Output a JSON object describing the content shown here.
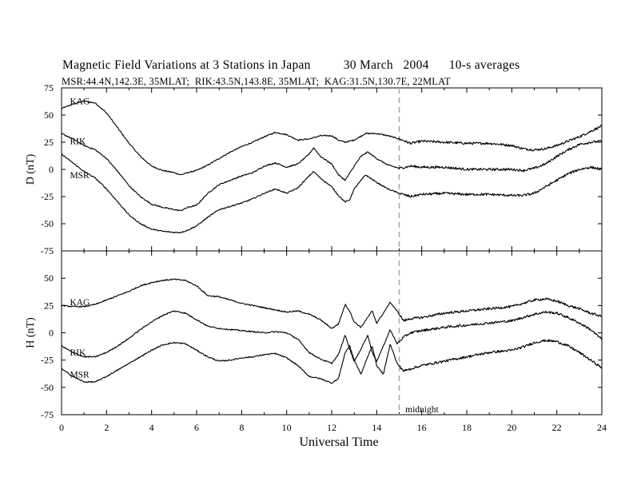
{
  "header": {
    "title": "Magnetic Field Variations at 3 Stations in Japan",
    "date": "30 March   2004",
    "averaging": "10-s averages",
    "stations_line": "MSR:44.4N,142.3E, 35MLAT;  RIK:43.5N,143.8E, 35MLAT;  KAG:31.5N,130.7E, 22MLAT"
  },
  "chart_data": [
    {
      "type": "line",
      "panel": "top",
      "ylabel": "D (nT)",
      "xlabel": "",
      "xlim": [
        0,
        24
      ],
      "ylim": [
        -75,
        75
      ],
      "yticks": [
        75,
        50,
        25,
        0,
        -25,
        -50,
        -75
      ],
      "grid": false,
      "marker_line": {
        "x": 15,
        "style": "dashed",
        "color": "#aaaaaa"
      },
      "series": [
        {
          "name": "KAG",
          "x": [
            0,
            0.5,
            1,
            1.5,
            2,
            2.5,
            3,
            3.5,
            4,
            4.5,
            5,
            5.3,
            5.6,
            6,
            6.5,
            7,
            7.5,
            8,
            8.5,
            9,
            9.5,
            10,
            10.5,
            11,
            11.5,
            12,
            12.3,
            12.6,
            13,
            13.5,
            14,
            14.5,
            15,
            15.5,
            16,
            17,
            18,
            19,
            20,
            20.5,
            21,
            21.5,
            22,
            22.5,
            23,
            23.5,
            24
          ],
          "values": [
            56,
            60,
            63,
            61,
            52,
            38,
            24,
            12,
            3,
            -1,
            -3,
            -5,
            -3,
            -1,
            4,
            10,
            16,
            21,
            25,
            30,
            34,
            32,
            27,
            28,
            31,
            31,
            27,
            25,
            27,
            33,
            33,
            31,
            28,
            24,
            26,
            25,
            24,
            24,
            22,
            19,
            18,
            19,
            22,
            26,
            30,
            35,
            40
          ]
        },
        {
          "name": "RIK",
          "x": [
            0,
            0.5,
            1,
            1.5,
            2,
            2.5,
            3,
            3.5,
            4,
            4.5,
            5,
            5.3,
            5.6,
            6,
            6.5,
            7,
            7.5,
            8,
            8.5,
            9,
            9.5,
            10,
            10.5,
            11,
            11.2,
            11.5,
            12,
            12.3,
            12.6,
            13,
            13.3,
            13.6,
            14,
            14.5,
            15,
            15.5,
            16,
            17,
            18,
            19,
            20,
            20.5,
            21,
            21.5,
            22,
            22.5,
            23,
            23.5,
            24
          ],
          "values": [
            33,
            28,
            22,
            18,
            10,
            -2,
            -15,
            -25,
            -32,
            -35,
            -37,
            -38,
            -35,
            -33,
            -22,
            -14,
            -10,
            -6,
            -3,
            3,
            6,
            2,
            5,
            14,
            20,
            12,
            5,
            -5,
            -10,
            3,
            12,
            16,
            10,
            4,
            1,
            3,
            2,
            2,
            0,
            0,
            0,
            -1,
            1,
            5,
            12,
            18,
            23,
            25,
            26
          ]
        },
        {
          "name": "MSR",
          "x": [
            0,
            0.5,
            1,
            1.5,
            2,
            2.5,
            3,
            3.5,
            4,
            4.5,
            5,
            5.3,
            5.6,
            6,
            6.5,
            7,
            7.5,
            8,
            8.5,
            9,
            9.5,
            10,
            10.5,
            11,
            11.2,
            11.5,
            12,
            12.3,
            12.6,
            12.8,
            13,
            13.5,
            14,
            14.5,
            15,
            15.5,
            16,
            17,
            18,
            19,
            20,
            20.5,
            21,
            21.5,
            22,
            22.5,
            23,
            23.5,
            24
          ],
          "values": [
            14,
            6,
            -2,
            -8,
            -18,
            -30,
            -42,
            -50,
            -55,
            -57,
            -58,
            -58,
            -56,
            -52,
            -44,
            -37,
            -34,
            -31,
            -27,
            -22,
            -18,
            -22,
            -17,
            -6,
            -2,
            -8,
            -16,
            -24,
            -30,
            -28,
            -18,
            -5,
            -12,
            -18,
            -22,
            -25,
            -23,
            -22,
            -23,
            -23,
            -24,
            -24,
            -22,
            -16,
            -10,
            -4,
            0,
            2,
            0
          ]
        }
      ],
      "annotations": [
        {
          "text": "KAG",
          "x": 0.3,
          "y": 63
        },
        {
          "text": "RIK",
          "x": 0.3,
          "y": 26
        },
        {
          "text": "MSR",
          "x": 0.3,
          "y": -5
        }
      ]
    },
    {
      "type": "line",
      "panel": "bottom",
      "ylabel": "H (nT)",
      "xlabel": "Universal Time",
      "xlim": [
        0,
        24
      ],
      "ylim": [
        -75,
        75
      ],
      "xticks": [
        0,
        2,
        4,
        6,
        8,
        10,
        12,
        14,
        16,
        18,
        20,
        22,
        24
      ],
      "yticks": [
        50,
        25,
        0,
        -25,
        -50,
        -75
      ],
      "grid": false,
      "marker_line": {
        "x": 15,
        "style": "dashed",
        "color": "#aaaaaa",
        "label": "midnight"
      },
      "series": [
        {
          "name": "KAG",
          "x": [
            0,
            0.5,
            1,
            1.5,
            2,
            2.5,
            3,
            3.5,
            4,
            4.5,
            5,
            5.5,
            6,
            6.5,
            7,
            7.5,
            8,
            8.5,
            9,
            9.5,
            10,
            10.5,
            11,
            11.5,
            12,
            12.3,
            12.6,
            12.8,
            13,
            13.3,
            13.6,
            13.8,
            14,
            14.3,
            14.6,
            14.9,
            15.2,
            15.5,
            16,
            17,
            18,
            19,
            20,
            20.5,
            21,
            21.5,
            22,
            22.5,
            23,
            23.5,
            24
          ],
          "values": [
            25,
            24,
            24,
            26,
            30,
            34,
            38,
            43,
            46,
            48,
            49,
            48,
            43,
            34,
            33,
            30,
            27,
            25,
            23,
            21,
            19,
            20,
            17,
            12,
            4,
            8,
            26,
            20,
            10,
            5,
            14,
            20,
            9,
            18,
            28,
            20,
            11,
            13,
            14,
            18,
            20,
            22,
            24,
            27,
            30,
            31,
            29,
            25,
            22,
            18,
            15
          ]
        },
        {
          "name": "RIK",
          "x": [
            0,
            0.5,
            1,
            1.5,
            2,
            2.5,
            3,
            3.5,
            4,
            4.5,
            5,
            5.5,
            6,
            6.5,
            7,
            7.5,
            8,
            8.5,
            9,
            9.5,
            10,
            10.5,
            11,
            11.5,
            12,
            12.3,
            12.6,
            12.8,
            13,
            13.3,
            13.6,
            13.8,
            14,
            14.3,
            14.6,
            14.9,
            15.2,
            15.5,
            16,
            17,
            18,
            19,
            20,
            20.5,
            21,
            21.5,
            22,
            22.5,
            23,
            23.5,
            24
          ],
          "values": [
            -12,
            -18,
            -22,
            -22,
            -18,
            -12,
            -5,
            3,
            10,
            16,
            20,
            18,
            12,
            6,
            4,
            3,
            2,
            1,
            0,
            1,
            0,
            -6,
            -18,
            -24,
            -28,
            -20,
            -2,
            -15,
            -26,
            -15,
            -2,
            -18,
            -26,
            -12,
            3,
            -10,
            -4,
            0,
            2,
            5,
            7,
            9,
            11,
            14,
            17,
            19,
            18,
            14,
            9,
            3,
            -6
          ]
        },
        {
          "name": "MSR",
          "x": [
            0,
            0.5,
            1,
            1.5,
            2,
            2.5,
            3,
            3.5,
            4,
            4.5,
            5,
            5.5,
            6,
            6.5,
            7,
            7.5,
            8,
            8.5,
            9,
            9.5,
            10,
            10.5,
            11,
            11.5,
            12,
            12.3,
            12.6,
            12.8,
            13,
            13.3,
            13.6,
            13.8,
            14,
            14.3,
            14.6,
            14.9,
            15.2,
            15.5,
            16,
            17,
            18,
            19,
            20,
            20.5,
            21,
            21.5,
            22,
            22.5,
            23,
            23.5,
            24
          ],
          "values": [
            -33,
            -40,
            -45,
            -45,
            -40,
            -34,
            -28,
            -22,
            -16,
            -11,
            -9,
            -10,
            -16,
            -22,
            -26,
            -25,
            -23,
            -22,
            -20,
            -19,
            -23,
            -30,
            -40,
            -42,
            -46,
            -42,
            -18,
            -12,
            -25,
            -38,
            -22,
            -12,
            -30,
            -38,
            -10,
            -28,
            -35,
            -33,
            -30,
            -26,
            -22,
            -18,
            -16,
            -13,
            -9,
            -7,
            -8,
            -12,
            -18,
            -25,
            -32
          ]
        }
      ],
      "annotations": [
        {
          "text": "KAG",
          "x": 0.3,
          "y": 28
        },
        {
          "text": "RIK",
          "x": 0.3,
          "y": -18
        },
        {
          "text": "MSR",
          "x": 0.3,
          "y": -38
        },
        {
          "text": "midnight",
          "x": 15.2,
          "y": -70
        }
      ]
    }
  ]
}
